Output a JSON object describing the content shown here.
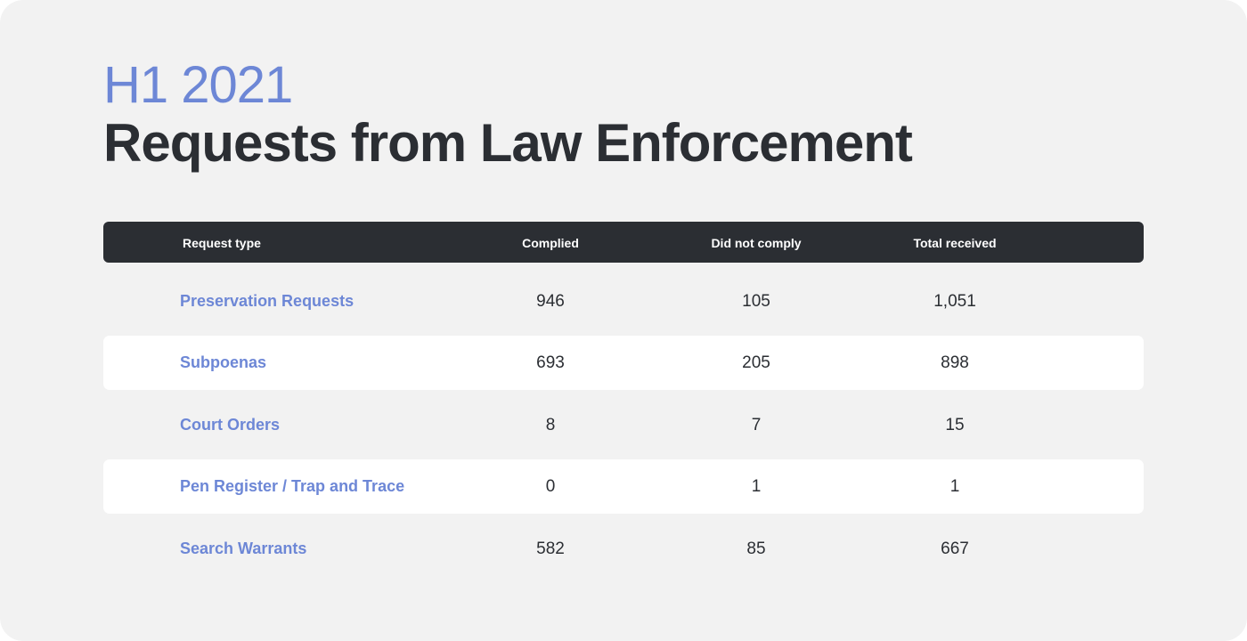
{
  "subtitle": "H1 2021",
  "title": "Requests from Law Enforcement",
  "colors": {
    "background": "#f2f2f2",
    "accent": "#6d87d6",
    "dark": "#2b2e33",
    "white_row": "#ffffff"
  },
  "chart_data": {
    "type": "table",
    "columns": [
      "Request type",
      "Complied",
      "Did not comply",
      "Total received"
    ],
    "rows": [
      {
        "label": "Preservation Requests",
        "complied": "946",
        "did_not_comply": "105",
        "total": "1,051"
      },
      {
        "label": "Subpoenas",
        "complied": "693",
        "did_not_comply": "205",
        "total": "898"
      },
      {
        "label": "Court Orders",
        "complied": "8",
        "did_not_comply": "7",
        "total": "15"
      },
      {
        "label": "Pen Register / Trap and Trace",
        "complied": "0",
        "did_not_comply": "1",
        "total": "1"
      },
      {
        "label": "Search Warrants",
        "complied": "582",
        "did_not_comply": "85",
        "total": "667"
      }
    ]
  }
}
